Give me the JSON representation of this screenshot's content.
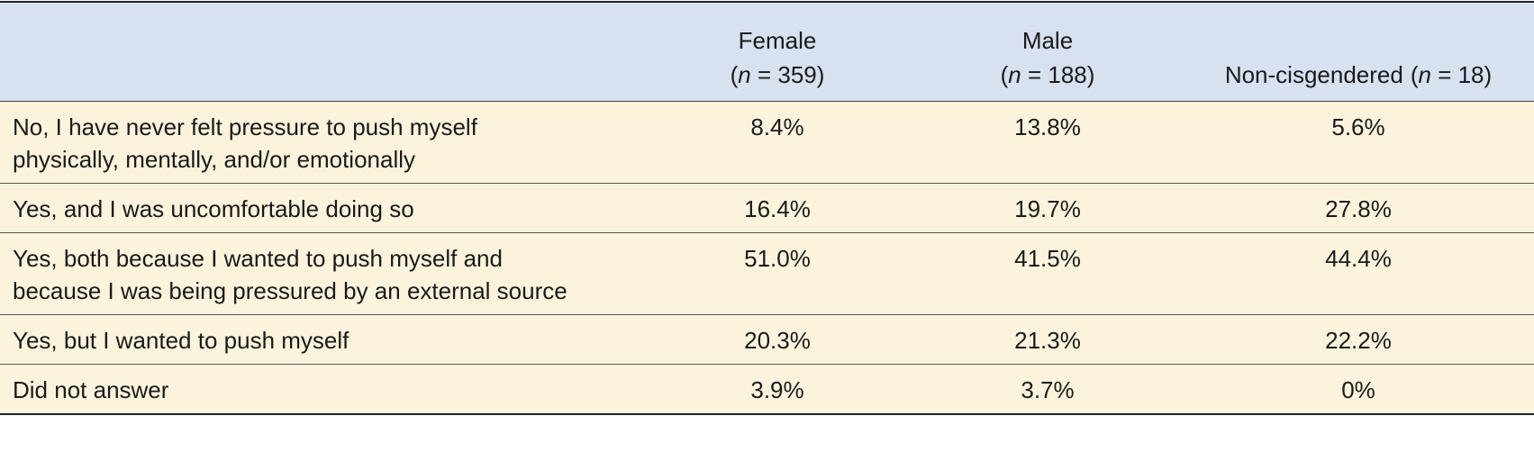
{
  "table": {
    "headers": [
      {
        "title": "Female",
        "count": [
          "(",
          "n",
          " = 359)"
        ]
      },
      {
        "title": "Male",
        "count": [
          "(",
          "n",
          " = 188)"
        ]
      },
      {
        "title": "Non-cisgendered",
        "count": [
          "(",
          "n",
          " = 18)"
        ]
      }
    ],
    "rows": [
      [
        "No, I have never felt pressure to push myself physically, mentally, and/or emotionally",
        "8.4%",
        "13.8%",
        "5.6%"
      ],
      [
        "Yes, and I was uncomfortable doing so",
        "16.4%",
        "19.7%",
        "27.8%"
      ],
      [
        "Yes, both because I wanted to push myself and because I was being pressured by an external source",
        "51.0%",
        "41.5%",
        "44.4%"
      ],
      [
        "Yes, but I wanted to push myself",
        "20.3%",
        "21.3%",
        "22.2%"
      ],
      [
        "Did not answer",
        "3.9%",
        "3.7%",
        "0%"
      ]
    ]
  }
}
